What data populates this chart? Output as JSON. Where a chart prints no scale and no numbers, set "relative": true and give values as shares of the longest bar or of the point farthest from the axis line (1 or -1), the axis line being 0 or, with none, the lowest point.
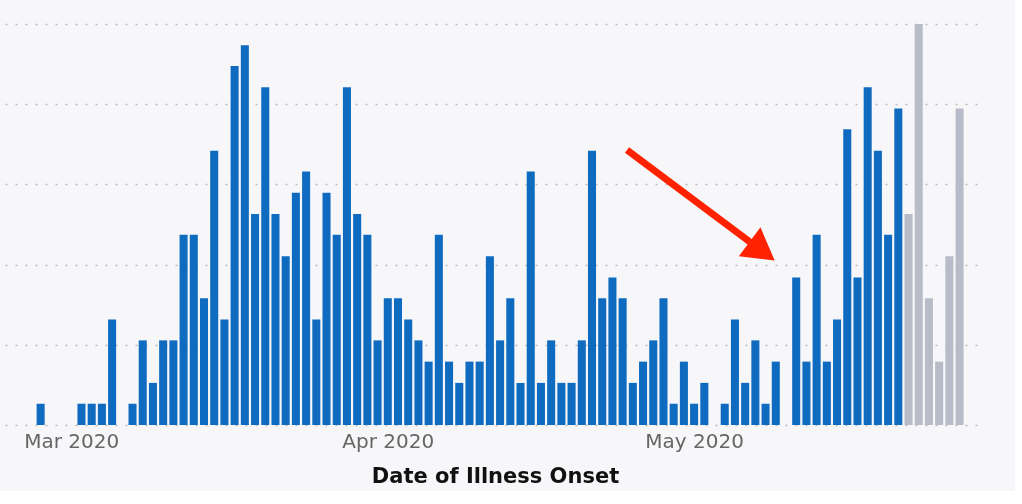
{
  "chart_data": {
    "type": "bar",
    "relative": true,
    "xlabel": "Date of Illness Onset",
    "xlim": [
      "2020-02-24",
      "2020-05-29"
    ],
    "xticks": [
      {
        "value": "2020-03-01",
        "label": "Mar 2020"
      },
      {
        "value": "2020-04-01",
        "label": "Apr 2020"
      },
      {
        "value": "2020-05-01",
        "label": "May 2020"
      }
    ],
    "grid": "y",
    "legend": false,
    "series": [
      {
        "color": "#0f6bc0",
        "x": [
          "2020-02-27",
          "2020-02-28",
          "2020-02-29",
          "2020-03-01",
          "2020-03-02",
          "2020-03-03",
          "2020-03-04",
          "2020-03-05",
          "2020-03-06",
          "2020-03-07",
          "2020-03-08",
          "2020-03-09",
          "2020-03-10",
          "2020-03-11",
          "2020-03-12",
          "2020-03-13",
          "2020-03-14",
          "2020-03-15",
          "2020-03-16",
          "2020-03-17",
          "2020-03-18",
          "2020-03-19",
          "2020-03-20",
          "2020-03-21",
          "2020-03-22",
          "2020-03-23",
          "2020-03-24",
          "2020-03-25",
          "2020-03-26",
          "2020-03-27",
          "2020-03-28",
          "2020-03-29",
          "2020-03-30",
          "2020-03-31",
          "2020-04-01",
          "2020-04-02",
          "2020-04-03",
          "2020-04-04",
          "2020-04-05",
          "2020-04-06",
          "2020-04-07",
          "2020-04-08",
          "2020-04-09",
          "2020-04-10",
          "2020-04-11",
          "2020-04-12",
          "2020-04-13",
          "2020-04-14",
          "2020-04-15",
          "2020-04-16",
          "2020-04-17",
          "2020-04-18",
          "2020-04-19",
          "2020-04-20",
          "2020-04-21",
          "2020-04-22",
          "2020-04-23",
          "2020-04-24",
          "2020-04-25",
          "2020-04-26",
          "2020-04-27",
          "2020-04-28",
          "2020-04-29",
          "2020-04-30",
          "2020-05-01",
          "2020-05-02",
          "2020-05-03",
          "2020-05-04",
          "2020-05-05",
          "2020-05-06",
          "2020-05-07",
          "2020-05-08",
          "2020-05-09",
          "2020-05-10",
          "2020-05-11",
          "2020-05-12",
          "2020-05-13",
          "2020-05-14",
          "2020-05-15",
          "2020-05-16",
          "2020-05-17",
          "2020-05-18",
          "2020-05-19",
          "2020-05-20",
          "2020-05-21"
        ],
        "values": [
          0.053,
          null,
          null,
          null,
          0.053,
          0.053,
          0.053,
          0.263,
          null,
          0.053,
          0.211,
          0.105,
          0.211,
          0.211,
          0.474,
          0.474,
          0.316,
          0.684,
          0.263,
          0.895,
          0.947,
          0.526,
          0.842,
          0.526,
          0.421,
          0.579,
          0.632,
          0.263,
          0.579,
          0.474,
          0.842,
          0.526,
          0.474,
          0.211,
          0.316,
          0.316,
          0.263,
          0.211,
          0.158,
          0.474,
          0.158,
          0.105,
          0.158,
          0.158,
          0.421,
          0.211,
          0.316,
          0.105,
          0.632,
          0.105,
          0.211,
          0.105,
          0.105,
          0.211,
          0.684,
          0.316,
          0.368,
          0.316,
          0.105,
          0.158,
          0.211,
          0.316,
          0.053,
          0.158,
          0.053,
          0.105,
          null,
          0.053,
          0.263,
          0.105,
          0.211,
          0.053,
          0.158,
          null,
          0.368,
          0.158,
          0.474,
          0.158,
          0.263,
          0.737,
          0.368,
          0.842,
          0.684,
          0.474,
          0.789
        ]
      },
      {
        "color": "#b8bcc8",
        "x": [
          "2020-05-22",
          "2020-05-23",
          "2020-05-24",
          "2020-05-25",
          "2020-05-26",
          "2020-05-27"
        ],
        "values": [
          0.526,
          1,
          0.316,
          0.158,
          0.421,
          0.789
        ]
      }
    ]
  }
}
